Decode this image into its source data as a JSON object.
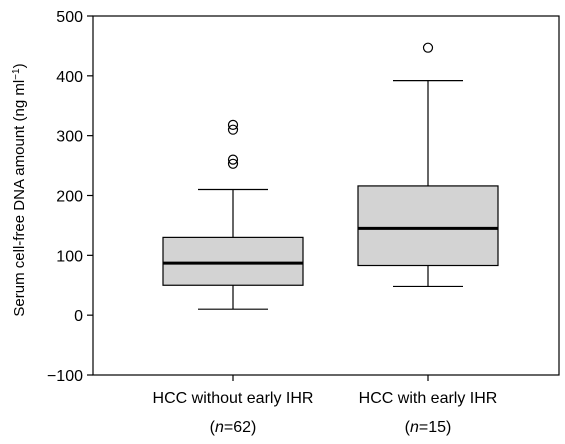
{
  "chart_data": {
    "type": "box",
    "ylabel": "Serum cell-free DNA amount (ng ml",
    "ylabel_superscript": "−1",
    "ylabel_close": ")",
    "ylim": [
      -100,
      500
    ],
    "yticks": [
      -100,
      0,
      100,
      200,
      300,
      400,
      500
    ],
    "ytick_labels": [
      "−100",
      "0",
      "100",
      "200",
      "300",
      "400",
      "500"
    ],
    "grid": false,
    "categories": [
      {
        "label": "HCC without early IHR",
        "n_prefix": "(",
        "n_symbol": "n",
        "n_value": "=62)"
      },
      {
        "label": "HCC with early IHR",
        "n_prefix": "(",
        "n_symbol": "n",
        "n_value": "=15)"
      }
    ],
    "boxes": [
      {
        "whisker_low": 10,
        "q1": 50,
        "median": 87,
        "q3": 130,
        "whisker_high": 210,
        "outliers": [
          253,
          260,
          310,
          318
        ]
      },
      {
        "whisker_low": 48,
        "q1": 83,
        "median": 145,
        "q3": 216,
        "whisker_high": 392,
        "outliers": [
          447
        ]
      }
    ],
    "box_fill": "#d3d3d3",
    "line_color": "#000000"
  }
}
